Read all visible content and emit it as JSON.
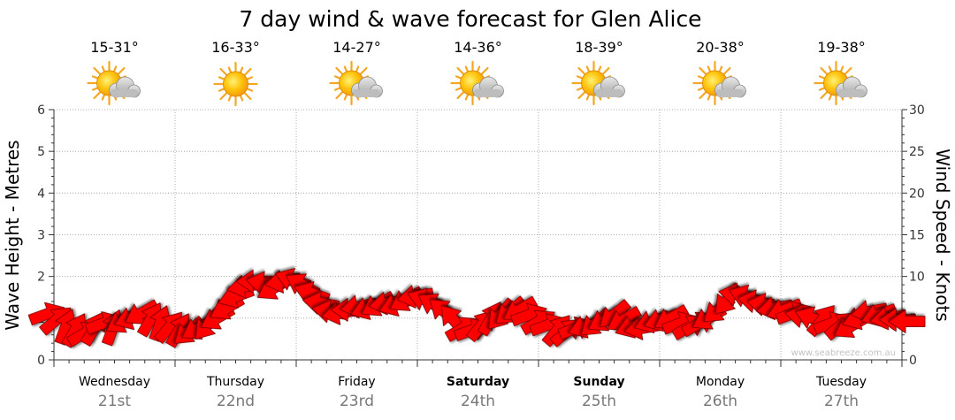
{
  "chart_data": {
    "type": "line",
    "title": "7 day wind & wave forecast for Glen Alice",
    "ylabel_left": "Wave Height - Metres",
    "ylabel_right": "Wind Speed - Knots",
    "watermark": "www.seabreeze.com.au",
    "ylim_left": [
      0,
      6
    ],
    "ylim_right": [
      0,
      30
    ],
    "yticks_left": [
      0,
      1,
      2,
      3,
      4,
      5,
      6
    ],
    "yticks_right": [
      0,
      5,
      10,
      15,
      20,
      25,
      30
    ],
    "grid": true,
    "days": [
      {
        "day": "Wednesday",
        "date": "21st",
        "temp": "15-31°",
        "icon": "sun-cloud-icon",
        "bold": false
      },
      {
        "day": "Thursday",
        "date": "22nd",
        "temp": "16-33°",
        "icon": "sun-icon",
        "bold": false
      },
      {
        "day": "Friday",
        "date": "23rd",
        "temp": "14-27°",
        "icon": "sun-cloud-icon",
        "bold": false
      },
      {
        "day": "Saturday",
        "date": "24th",
        "temp": "14-36°",
        "icon": "sun-cloud-icon",
        "bold": true
      },
      {
        "day": "Sunday",
        "date": "25th",
        "temp": "18-39°",
        "icon": "sun-cloud-icon",
        "bold": true
      },
      {
        "day": "Monday",
        "date": "26th",
        "temp": "20-38°",
        "icon": "sun-cloud-icon",
        "bold": false
      },
      {
        "day": "Tuesday",
        "date": "27th",
        "temp": "19-38°",
        "icon": "sun-cloud-icon",
        "bold": false
      }
    ],
    "series": [
      {
        "name": "Wind Speed",
        "unit": "knots",
        "color": "#ff0000",
        "values": [
          5.5,
          4.8,
          4.0,
          3.6,
          3.2,
          3.8,
          4.4,
          3.9,
          4.6,
          5.0,
          5.6,
          4.9,
          4.4,
          4.0,
          3.6,
          3.4,
          3.8,
          4.2,
          5.0,
          6.2,
          7.6,
          8.8,
          9.4,
          9.2,
          8.6,
          9.4,
          9.6,
          9.0,
          8.0,
          6.8,
          5.8,
          5.6,
          6.0,
          6.4,
          6.2,
          6.6,
          6.8,
          6.6,
          7.2,
          7.6,
          7.2,
          6.6,
          5.8,
          4.8,
          3.8,
          3.6,
          4.2,
          5.0,
          5.4,
          5.8,
          6.0,
          5.4,
          4.6,
          4.2,
          3.6,
          3.4,
          3.8,
          4.0,
          4.4,
          4.8,
          5.4,
          4.8,
          4.0,
          3.8,
          4.6,
          4.8,
          5.0,
          4.4,
          4.0,
          4.4,
          5.0,
          6.0,
          7.2,
          7.8,
          7.6,
          7.0,
          6.6,
          6.2,
          6.0,
          5.6,
          5.2,
          5.0,
          4.8,
          4.4,
          4.2,
          4.0,
          5.0,
          5.8,
          5.4,
          5.0,
          4.8,
          4.6
        ]
      }
    ],
    "wind_from_deg": [
      250,
      230,
      200,
      210,
      240,
      210,
      250,
      200,
      60,
      70,
      60,
      210,
      200,
      220,
      210,
      50,
      60,
      40,
      60,
      60,
      70,
      80,
      90,
      100,
      60,
      80,
      110,
      120,
      110,
      100,
      100,
      80,
      90,
      80,
      70,
      60,
      80,
      70,
      60,
      80,
      110,
      120,
      130,
      140,
      240,
      250,
      220,
      210,
      40,
      50,
      60,
      250,
      240,
      250,
      220,
      230,
      250,
      70,
      50,
      60,
      50,
      60,
      70,
      80,
      70,
      70,
      60,
      250,
      240,
      240,
      60,
      50,
      40,
      100,
      110,
      100,
      100,
      80,
      70,
      250,
      100,
      110,
      220,
      250,
      230,
      60,
      70,
      80,
      70,
      80,
      90,
      90
    ]
  }
}
